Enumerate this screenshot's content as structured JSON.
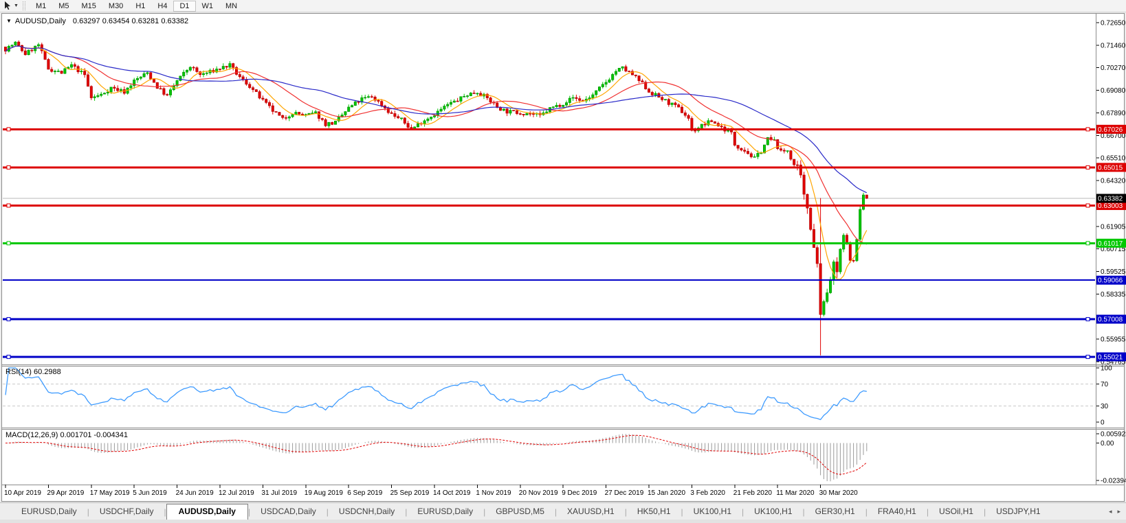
{
  "toolbar": {
    "timeframes": [
      "M1",
      "M5",
      "M15",
      "M30",
      "H1",
      "H4",
      "D1",
      "W1",
      "MN"
    ],
    "active": "D1"
  },
  "chart": {
    "symbol": "AUDUSD,Daily",
    "ohlc_text": "0.63297 0.63454 0.63281 0.63382",
    "price_axis": [
      {
        "t": "0.72650",
        "v": 0.7265
      },
      {
        "t": "0.71460",
        "v": 0.7146
      },
      {
        "t": "0.70270",
        "v": 0.7027
      },
      {
        "t": "0.69080",
        "v": 0.6908
      },
      {
        "t": "0.67890",
        "v": 0.6789
      },
      {
        "t": "0.66700",
        "v": 0.667
      },
      {
        "t": "0.65510",
        "v": 0.6551
      },
      {
        "t": "0.64320",
        "v": 0.6432
      },
      {
        "t": "0.61905",
        "v": 0.61905
      },
      {
        "t": "0.60715",
        "v": 0.60715
      },
      {
        "t": "0.59525",
        "v": 0.59525
      },
      {
        "t": "0.58335",
        "v": 0.58335
      },
      {
        "t": "0.55955",
        "v": 0.55955
      },
      {
        "t": "0.54765",
        "v": 0.54765
      }
    ],
    "current_price": {
      "t": "0.63382",
      "v": 0.63382,
      "line_color": "#B8B8B8",
      "label_bg": "#000000"
    },
    "hlines": [
      {
        "t": "0.67026",
        "v": 0.67026,
        "color": "#DD0000",
        "width": 3,
        "endpoints": true
      },
      {
        "t": "0.65015",
        "v": 0.65015,
        "color": "#DD0000",
        "width": 3,
        "endpoints": true
      },
      {
        "t": "0.63003",
        "v": 0.63003,
        "color": "#DD0000",
        "width": 3,
        "endpoints": true
      },
      {
        "t": "0.61017",
        "v": 0.61017,
        "color": "#00C800",
        "width": 3,
        "endpoints": true
      },
      {
        "t": "0.59066",
        "v": 0.59066,
        "color": "#0000C8",
        "width": 2,
        "endpoints": false
      },
      {
        "t": "0.57008",
        "v": 0.57008,
        "color": "#0000C8",
        "width": 3,
        "endpoints": true
      },
      {
        "t": "0.55021",
        "v": 0.55021,
        "color": "#0000C8",
        "width": 3,
        "endpoints": true
      }
    ]
  },
  "rsi": {
    "label": "RSI(14) 60.2988",
    "line_color": "#3E9BFF",
    "axis": [
      {
        "t": "100",
        "v": 100
      },
      {
        "t": "70",
        "v": 70
      },
      {
        "t": "30",
        "v": 30
      },
      {
        "t": "0",
        "v": 0
      }
    ],
    "levels": [
      70,
      30
    ]
  },
  "macd": {
    "label": "MACD(12,26,9) 0.001701 -0.004341",
    "bar_color": "#9A9A9A",
    "signal_color": "#E00000",
    "axis": [
      {
        "t": "0.005923",
        "v": 0.005923
      },
      {
        "t": "0.00",
        "v": 0
      },
      {
        "t": "-0.02394",
        "v": -0.02394
      }
    ]
  },
  "date_axis": {
    "labels": [
      "10 Apr 2019",
      "29 Apr 2019",
      "17 May 2019",
      "5 Jun 2019",
      "24 Jun 2019",
      "12 Jul 2019",
      "31 Jul 2019",
      "19 Aug 2019",
      "6 Sep 2019",
      "25 Sep 2019",
      "14 Oct 2019",
      "1 Nov 2019",
      "20 Nov 2019",
      "9 Dec 2019",
      "27 Dec 2019",
      "15 Jan 2020",
      "3 Feb 2020",
      "21 Feb 2020",
      "11 Mar 2020",
      "30 Mar 2020"
    ]
  },
  "tabs": {
    "items": [
      "EURUSD,Daily",
      "USDCHF,Daily",
      "AUDUSD,Daily",
      "USDCAD,Daily",
      "USDCNH,Daily",
      "EURUSD,Daily",
      "GBPUSD,M5",
      "XAUUSD,H1",
      "HK50,H1",
      "UK100,H1",
      "UK100,H1",
      "GER30,H1",
      "FRA40,H1",
      "USOil,H1",
      "USDJPY,H1"
    ],
    "active_index": 2,
    "scroll_left_icon": "◂",
    "scroll_right_icon": "▸"
  },
  "chart_data": {
    "type": "candlestick",
    "symbol": "AUDUSD",
    "timeframe": "Daily",
    "last_ohlc": {
      "open": 0.63297,
      "high": 0.63454,
      "low": 0.63281,
      "close": 0.63382
    },
    "price_range_shown": [
      0.54765,
      0.7265
    ],
    "candle_count": 262,
    "up_color": "#00C400",
    "down_color": "#E00000",
    "overlays": [
      {
        "name": "MA-fast",
        "period": 8,
        "color": "#FFA500"
      },
      {
        "name": "MA-mid",
        "period": 21,
        "color": "#F03030"
      },
      {
        "name": "MA-slow",
        "period": 45,
        "color": "#2828C8"
      }
    ],
    "horizontal_levels": [
      0.67026,
      0.65015,
      0.63003,
      0.61017,
      0.59066,
      0.57008,
      0.55021
    ],
    "indicators": [
      {
        "name": "RSI",
        "period": 14,
        "value": 60.2988,
        "range": [
          0,
          100
        ],
        "levels": [
          70,
          30
        ]
      },
      {
        "name": "MACD",
        "fast": 12,
        "slow": 26,
        "signal_period": 9,
        "value": 0.001701,
        "signal": -0.004341,
        "scale_max": 0.005923,
        "scale_min": -0.02394
      }
    ],
    "big_wick": {
      "index": 247,
      "high": 0.634,
      "low": 0.551
    },
    "price_waypoints": [
      [
        0,
        0.7125
      ],
      [
        3,
        0.7158
      ],
      [
        6,
        0.71
      ],
      [
        10,
        0.7148
      ],
      [
        13,
        0.7022
      ],
      [
        17,
        0.7
      ],
      [
        20,
        0.704
      ],
      [
        24,
        0.6988
      ],
      [
        26,
        0.6868
      ],
      [
        29,
        0.6885
      ],
      [
        32,
        0.6922
      ],
      [
        36,
        0.69
      ],
      [
        39,
        0.6958
      ],
      [
        43,
        0.7
      ],
      [
        46,
        0.6925
      ],
      [
        49,
        0.6878
      ],
      [
        52,
        0.6958
      ],
      [
        56,
        0.7035
      ],
      [
        59,
        0.699
      ],
      [
        62,
        0.7005
      ],
      [
        65,
        0.7025
      ],
      [
        68,
        0.704
      ],
      [
        71,
        0.6975
      ],
      [
        74,
        0.693
      ],
      [
        78,
        0.6852
      ],
      [
        81,
        0.68
      ],
      [
        84,
        0.6755
      ],
      [
        87,
        0.679
      ],
      [
        91,
        0.6775
      ],
      [
        94,
        0.6788
      ],
      [
        97,
        0.673
      ],
      [
        100,
        0.6738
      ],
      [
        104,
        0.6815
      ],
      [
        108,
        0.6862
      ],
      [
        111,
        0.6875
      ],
      [
        114,
        0.6832
      ],
      [
        117,
        0.6782
      ],
      [
        120,
        0.6752
      ],
      [
        123,
        0.6702
      ],
      [
        126,
        0.6742
      ],
      [
        130,
        0.6782
      ],
      [
        134,
        0.6832
      ],
      [
        137,
        0.6856
      ],
      [
        140,
        0.6886
      ],
      [
        143,
        0.69
      ],
      [
        146,
        0.6866
      ],
      [
        149,
        0.682
      ],
      [
        152,
        0.6796
      ],
      [
        156,
        0.679
      ],
      [
        159,
        0.6786
      ],
      [
        162,
        0.6772
      ],
      [
        165,
        0.6812
      ],
      [
        169,
        0.684
      ],
      [
        172,
        0.687
      ],
      [
        175,
        0.6852
      ],
      [
        178,
        0.6882
      ],
      [
        182,
        0.6952
      ],
      [
        185,
        0.701
      ],
      [
        187,
        0.7025
      ],
      [
        190,
        0.699
      ],
      [
        193,
        0.6942
      ],
      [
        195,
        0.6902
      ],
      [
        198,
        0.6872
      ],
      [
        201,
        0.6842
      ],
      [
        204,
        0.6812
      ],
      [
        207,
        0.6762
      ],
      [
        208,
        0.6692
      ],
      [
        211,
        0.6722
      ],
      [
        214,
        0.6746
      ],
      [
        217,
        0.6712
      ],
      [
        220,
        0.6682
      ],
      [
        221,
        0.6622
      ],
      [
        224,
        0.6592
      ],
      [
        227,
        0.6548
      ],
      [
        229,
        0.6588
      ],
      [
        231,
        0.6652
      ],
      [
        233,
        0.664
      ],
      [
        235,
        0.6582
      ],
      [
        237,
        0.6592
      ],
      [
        239,
        0.6512
      ],
      [
        240,
        0.649
      ],
      [
        241,
        0.6442
      ],
      [
        242,
        0.6342
      ],
      [
        243,
        0.6292
      ],
      [
        244,
        0.6192
      ],
      [
        245,
        0.6092
      ],
      [
        246,
        0.5992
      ],
      [
        247,
        0.5745
      ],
      [
        248,
        0.5782
      ],
      [
        249,
        0.5832
      ],
      [
        250,
        0.5912
      ],
      [
        251,
        0.5982
      ],
      [
        252,
        0.5952
      ],
      [
        253,
        0.6062
      ],
      [
        254,
        0.6142
      ],
      [
        255,
        0.6092
      ],
      [
        256,
        0.6022
      ],
      [
        257,
        0.6002
      ],
      [
        258,
        0.6122
      ],
      [
        259,
        0.6282
      ],
      [
        260,
        0.6355
      ],
      [
        261,
        0.63382
      ]
    ]
  }
}
